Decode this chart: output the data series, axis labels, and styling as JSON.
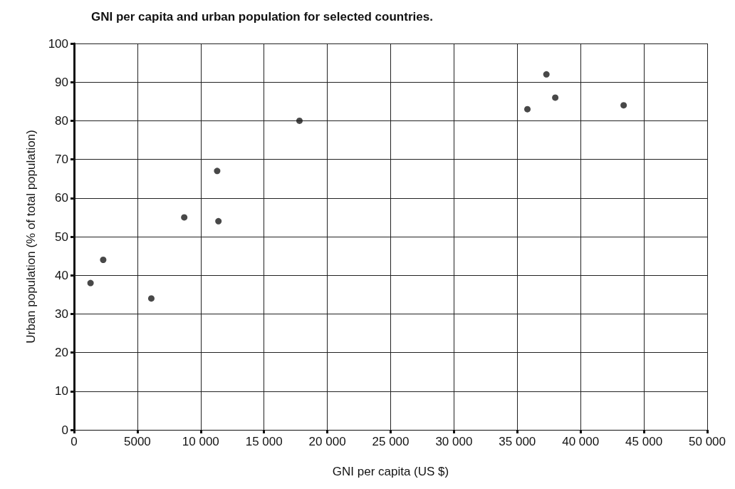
{
  "chart_data": {
    "type": "scatter",
    "title": "GNI per capita and urban population for selected countries.",
    "xlabel": "GNI per capita (US $)",
    "ylabel": "Urban population (% of total population)",
    "x": [
      1300,
      2300,
      6100,
      8700,
      11300,
      11400,
      17800,
      35800,
      37300,
      38000,
      43400
    ],
    "values": [
      38,
      44,
      34,
      55,
      67,
      54,
      80,
      83,
      92,
      86,
      84
    ],
    "color": "#1a1a1a",
    "marker": "circle",
    "grid": true,
    "xlim": [
      0,
      50000
    ],
    "xticks": [
      0,
      5000,
      {
        "value": 10000,
        "label": "10 000"
      },
      {
        "value": 15000,
        "label": "15 000"
      },
      {
        "value": 20000,
        "label": "20 000"
      },
      {
        "value": 25000,
        "label": "25 000"
      },
      {
        "value": 30000,
        "label": "30 000"
      },
      {
        "value": 35000,
        "label": "35 000"
      },
      {
        "value": 40000,
        "label": "40 000"
      },
      {
        "value": 45000,
        "label": "45 000"
      },
      {
        "value": 50000,
        "label": "50 000"
      }
    ],
    "ylim": [
      0,
      100
    ],
    "yticks": [
      0,
      10,
      20,
      30,
      40,
      50,
      60,
      70,
      80,
      90,
      100
    ]
  }
}
